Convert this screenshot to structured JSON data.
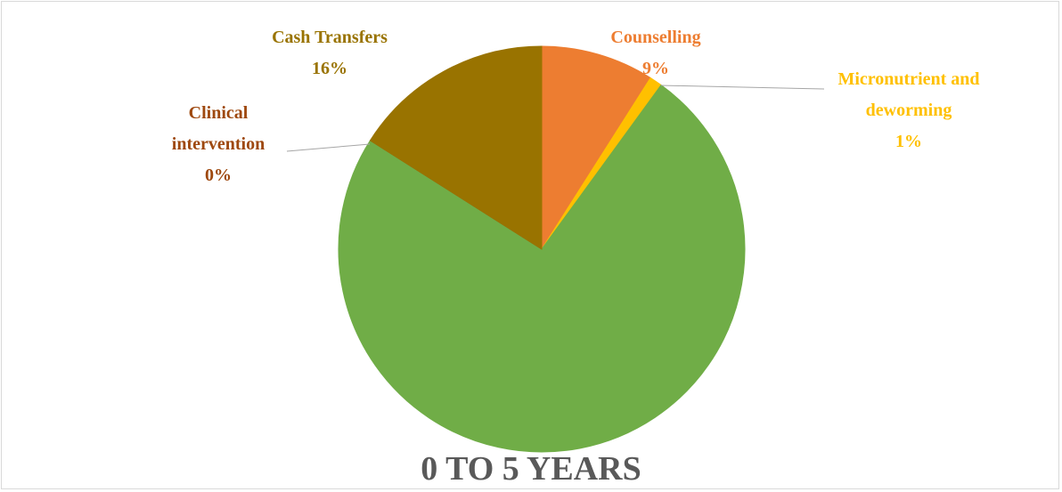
{
  "chart_data": {
    "type": "pie",
    "title": "0 TO 5 YEARS",
    "categories": [
      "Counselling",
      "Micronutrient and deworming",
      null,
      "Clinical intervention",
      "Cash Transfers"
    ],
    "values": [
      9,
      1,
      74,
      0,
      16
    ],
    "value_labels": [
      "9%",
      "1%",
      null,
      "0%",
      "16%"
    ],
    "colors": [
      "#ED7D31",
      "#FFC000",
      "#70AD47",
      "#9E480E",
      "#997300"
    ]
  }
}
